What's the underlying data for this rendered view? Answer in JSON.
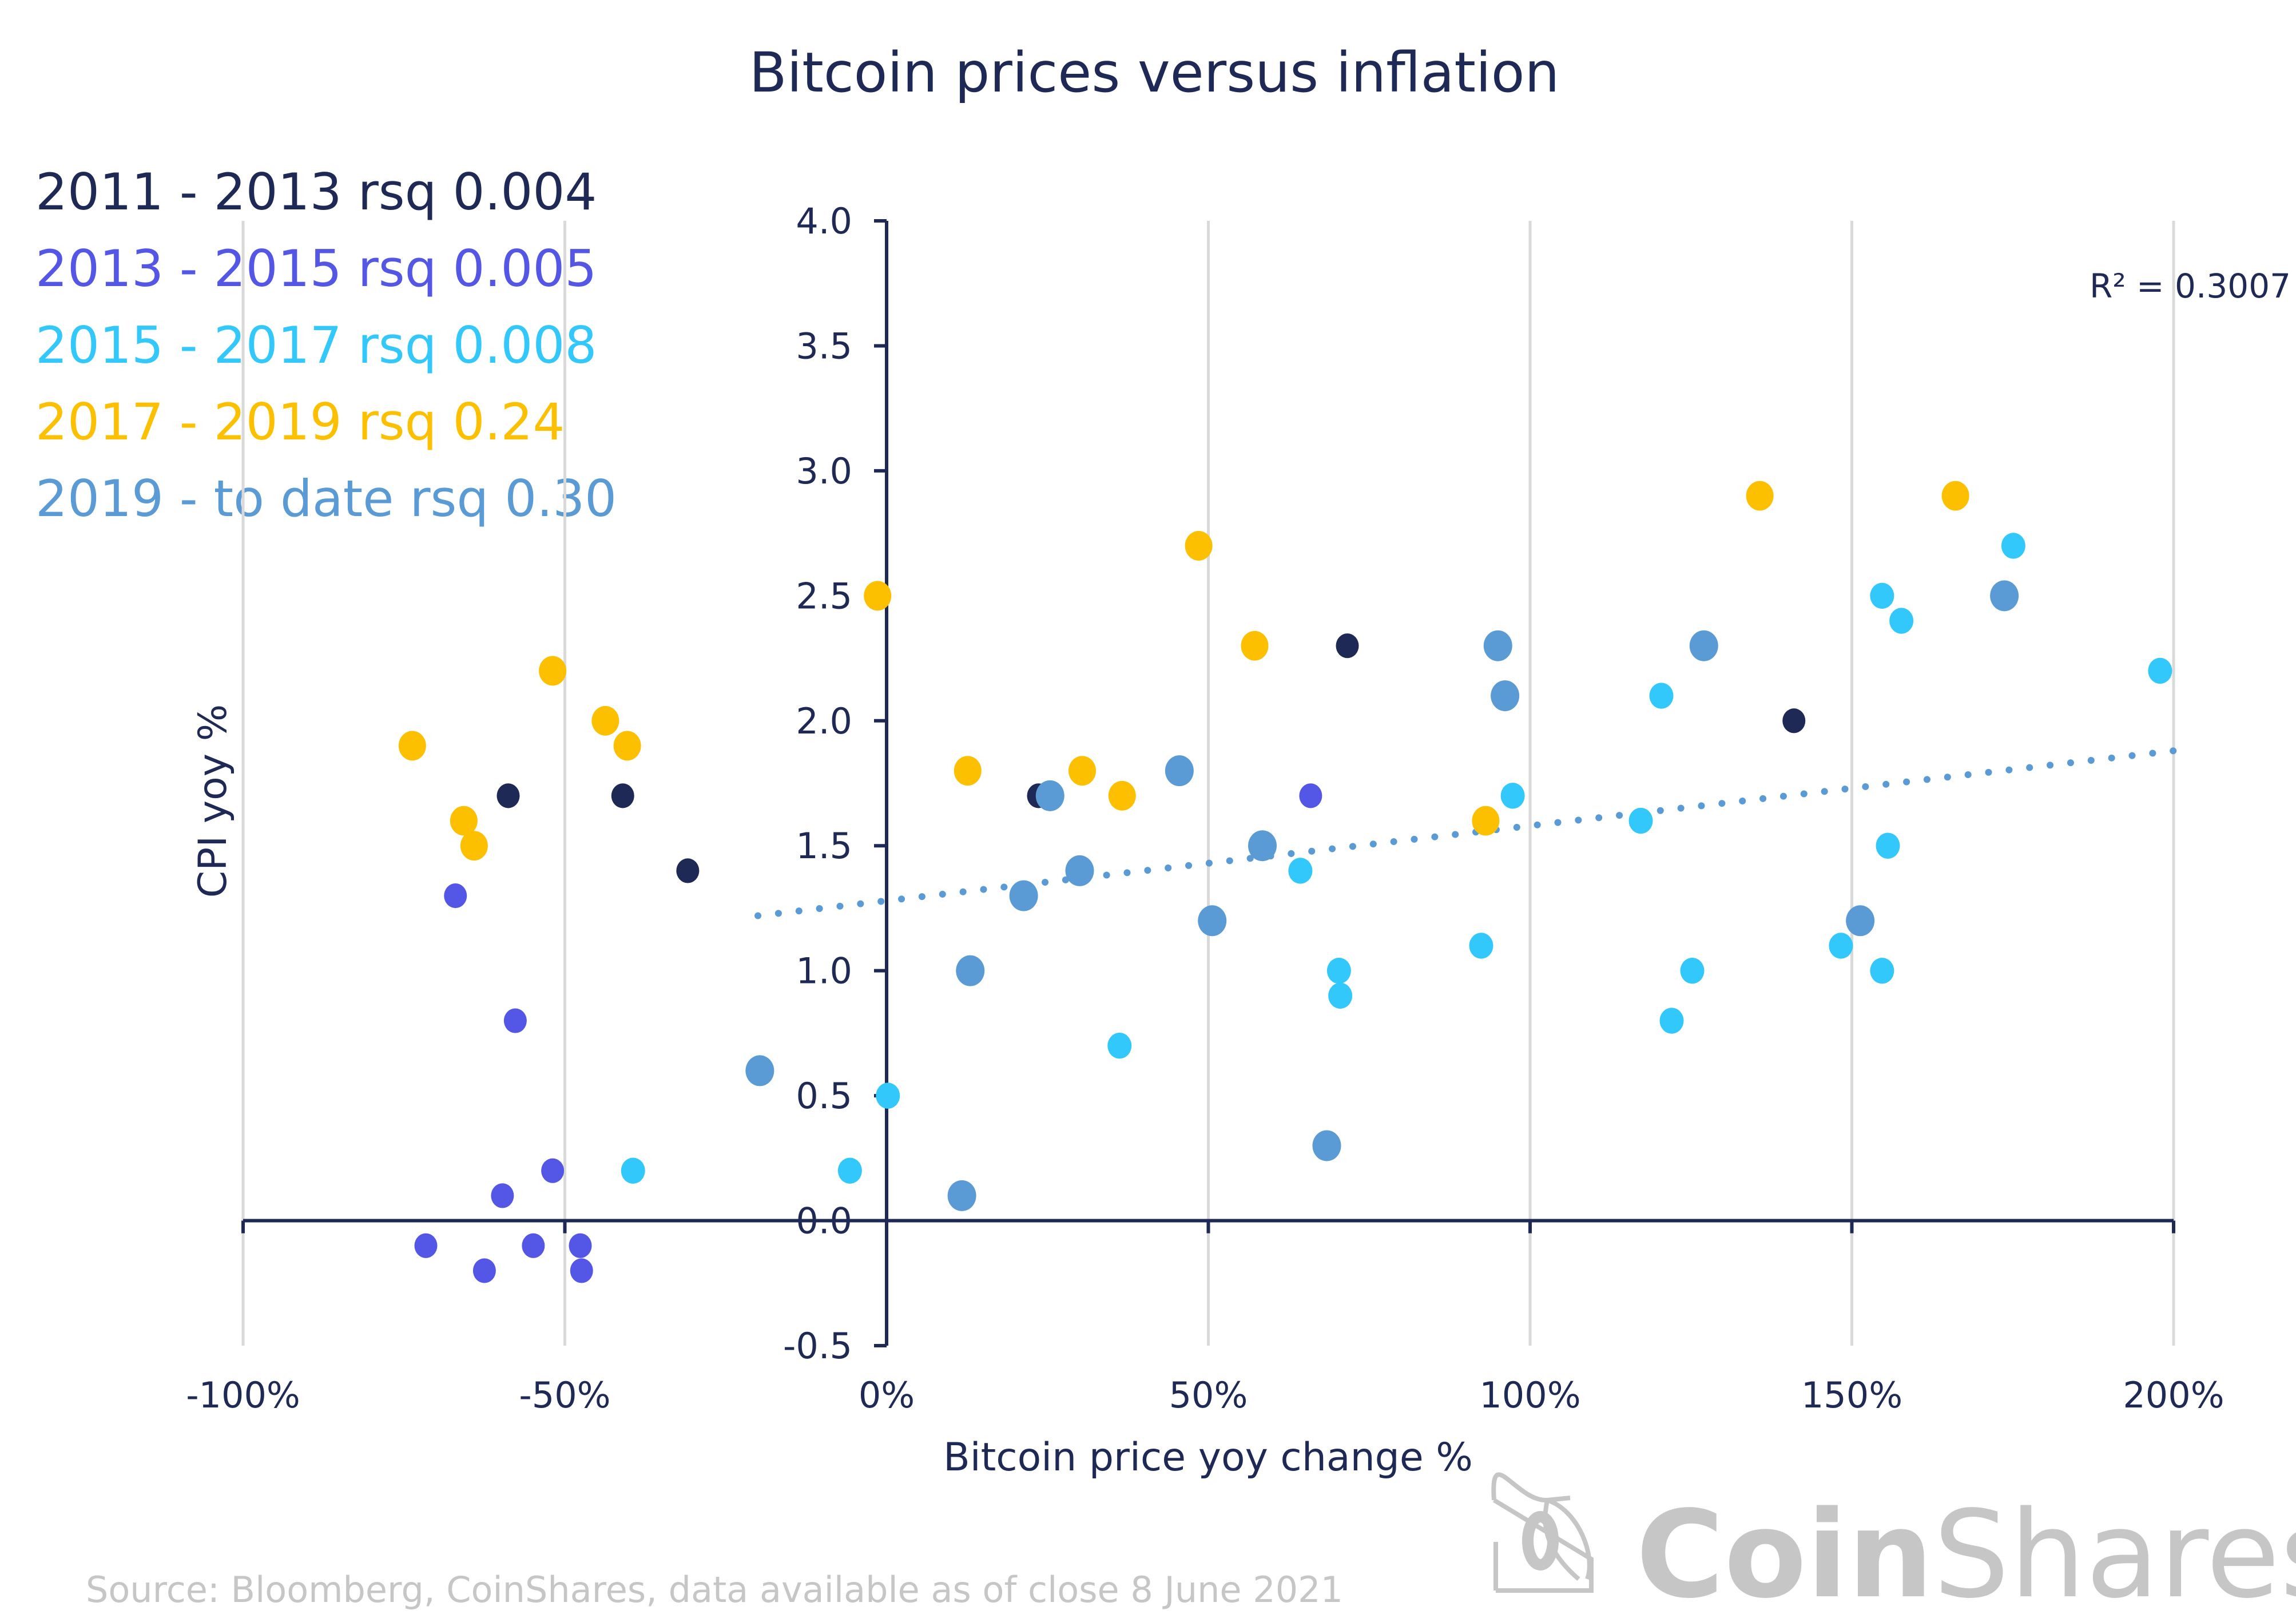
{
  "chart_data": {
    "type": "scatter",
    "title": "Bitcoin prices versus inflation",
    "xlabel": "Bitcoin price yoy change %",
    "ylabel": "CPI yoy %",
    "xlim": [
      -100,
      200
    ],
    "ylim": [
      -0.5,
      4.0
    ],
    "x_ticks": [
      -100,
      -50,
      0,
      50,
      100,
      150,
      200
    ],
    "x_tick_labels": [
      "-100%",
      "-50%",
      "0%",
      "50%",
      "100%",
      "150%",
      "200%"
    ],
    "y_ticks": [
      -0.5,
      0.0,
      0.5,
      1.0,
      1.5,
      2.0,
      2.5,
      3.0,
      3.5,
      4.0
    ],
    "y_tick_labels": [
      "-0.5",
      "0.0",
      "0.5",
      "1.0",
      "1.5",
      "2.0",
      "2.5",
      "3.0",
      "3.5",
      "4.0"
    ],
    "grid": "vertical",
    "legend_position": "top-left",
    "series": [
      {
        "name": "2011 - 2013 rsq 0.004",
        "color": "#1e2a55",
        "points": [
          [
            -58.8,
            1.7
          ],
          [
            -41.0,
            1.7
          ],
          [
            -30.9,
            1.4
          ],
          [
            23.6,
            1.7
          ],
          [
            71.6,
            2.3
          ],
          [
            141.0,
            2.0
          ]
        ]
      },
      {
        "name": "2013 - 2015 rsq 0.005",
        "color": "#5457e6",
        "points": [
          [
            -67.0,
            1.3
          ],
          [
            -57.7,
            0.8
          ],
          [
            -51.9,
            0.2
          ],
          [
            -59.7,
            0.1
          ],
          [
            -71.6,
            -0.1
          ],
          [
            -54.9,
            -0.1
          ],
          [
            -47.6,
            -0.1
          ],
          [
            -62.5,
            -0.2
          ],
          [
            -47.4,
            -0.2
          ],
          [
            65.9,
            1.7
          ]
        ]
      },
      {
        "name": "2015 - 2017 rsq 0.008",
        "color": "#32c8fc",
        "points": [
          [
            -39.4,
            0.2
          ],
          [
            -5.7,
            0.2
          ],
          [
            0.2,
            0.5
          ],
          [
            36.2,
            0.7
          ],
          [
            64.3,
            1.4
          ],
          [
            70.3,
            1.0
          ],
          [
            70.5,
            0.9
          ],
          [
            92.4,
            1.1
          ],
          [
            97.3,
            1.7
          ],
          [
            117.2,
            1.6
          ],
          [
            120.4,
            2.1
          ],
          [
            122.0,
            0.8
          ],
          [
            125.2,
            1.0
          ],
          [
            148.3,
            1.1
          ],
          [
            154.7,
            2.5
          ],
          [
            154.7,
            1.0
          ],
          [
            155.6,
            1.5
          ],
          [
            157.7,
            2.4
          ],
          [
            175.1,
            2.7
          ],
          [
            197.9,
            2.2
          ]
        ]
      },
      {
        "name": "2017 - 2019 rsq 0.24",
        "color": "#fcc000",
        "points": [
          [
            -73.7,
            1.9
          ],
          [
            -51.9,
            2.2
          ],
          [
            -43.7,
            2.0
          ],
          [
            -40.3,
            1.9
          ],
          [
            -65.7,
            1.6
          ],
          [
            -64.1,
            1.5
          ],
          [
            -1.4,
            2.5
          ],
          [
            12.6,
            1.8
          ],
          [
            30.4,
            1.8
          ],
          [
            36.6,
            1.7
          ],
          [
            48.5,
            2.7
          ],
          [
            57.2,
            2.3
          ],
          [
            93.1,
            1.6
          ],
          [
            135.7,
            2.9
          ],
          [
            166.1,
            2.9
          ]
        ]
      },
      {
        "name": "2019 - to date rsq 0.30",
        "color": "#5b9bd5",
        "points": [
          [
            -19.7,
            0.6
          ],
          [
            11.7,
            0.1
          ],
          [
            13.0,
            1.0
          ],
          [
            21.3,
            1.3
          ],
          [
            25.4,
            1.7
          ],
          [
            30.0,
            1.4
          ],
          [
            45.5,
            1.8
          ],
          [
            50.6,
            1.2
          ],
          [
            58.4,
            1.5
          ],
          [
            68.4,
            0.3
          ],
          [
            95.0,
            2.3
          ],
          [
            96.1,
            2.1
          ],
          [
            127.0,
            2.3
          ],
          [
            151.3,
            1.2
          ],
          [
            173.7,
            2.5
          ]
        ]
      }
    ],
    "trendline": {
      "series": "2019 - to date rsq 0.30",
      "style": "dotted",
      "color": "#5b9bd5",
      "x_range": [
        -20,
        200
      ],
      "intercept": 1.28,
      "slope": 0.003,
      "label": "R² = 0.3007"
    }
  },
  "source": "Source: Bloomberg, CoinShares, data available as of close 8 June 2021",
  "logo": {
    "bold": "Coin",
    "light": "Shares",
    "icon": "coinshares-logo-icon",
    "color": "#c6c6c6"
  }
}
